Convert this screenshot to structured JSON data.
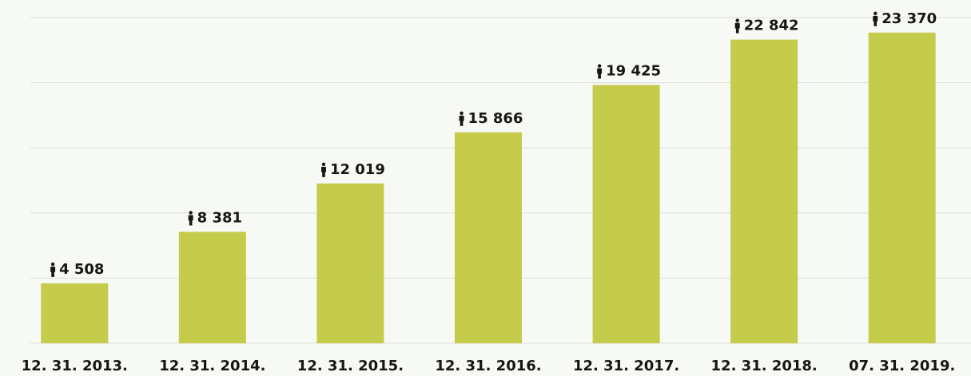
{
  "chart_data": {
    "type": "bar",
    "categories": [
      "12. 31. 2013.",
      "12. 31. 2014.",
      "12. 31. 2015.",
      "12. 31. 2016.",
      "12. 31. 2017.",
      "12. 31. 2018.",
      "07. 31. 2019."
    ],
    "values": [
      4508,
      8381,
      12019,
      15866,
      19425,
      22842,
      23370
    ],
    "value_labels": [
      "4 508",
      "8 381",
      "12 019",
      "15 866",
      "19 425",
      "22 842",
      "23 370"
    ],
    "color": "#c5cb4a",
    "ylim": [
      0,
      24500
    ],
    "yticks": [
      0,
      4900,
      9800,
      14700,
      19600,
      24500
    ],
    "grid": true
  }
}
